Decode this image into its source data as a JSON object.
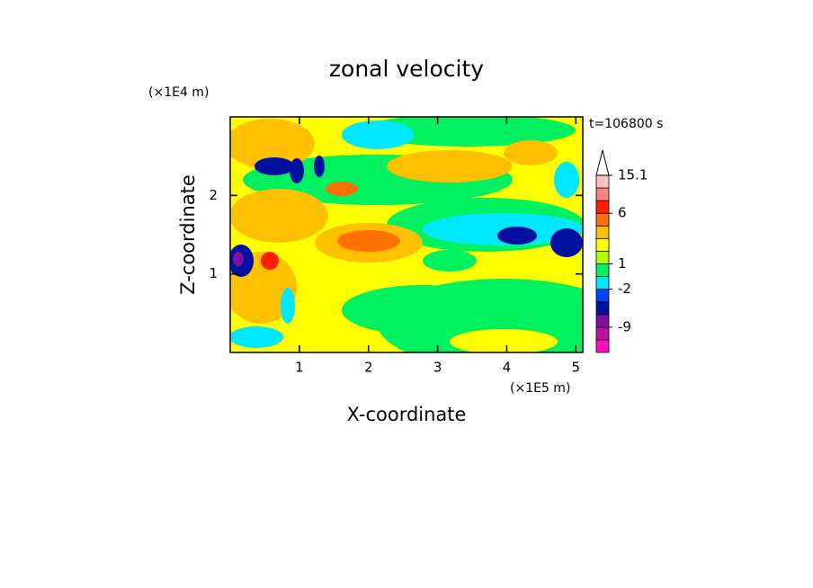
{
  "chart_data": {
    "type": "contour",
    "title": "zonal velocity",
    "x_label": "X-coordinate",
    "y_label": "Z-coordinate",
    "x_unit": "(×1E5 m)",
    "y_unit": "(×1E4 m)",
    "time_label": "t=106800 s",
    "xlim": [
      0,
      5.1
    ],
    "ylim": [
      0,
      3.0
    ],
    "xticks": [
      1,
      2,
      3,
      4,
      5
    ],
    "yticks": [
      1,
      2
    ],
    "colorbar": {
      "colors": [
        "#ff10c0",
        "#c010a0",
        "#8010a0",
        "#0010a0",
        "#0040ff",
        "#00e8ff",
        "#00f060",
        "#b0ff00",
        "#ffff00",
        "#ffc000",
        "#ff7000",
        "#ff2000",
        "#ff8080",
        "#ffc0c0"
      ],
      "labels": [
        null,
        null,
        -9,
        null,
        null,
        -2,
        null,
        1,
        null,
        null,
        null,
        6,
        null,
        null,
        15.1
      ]
    }
  }
}
